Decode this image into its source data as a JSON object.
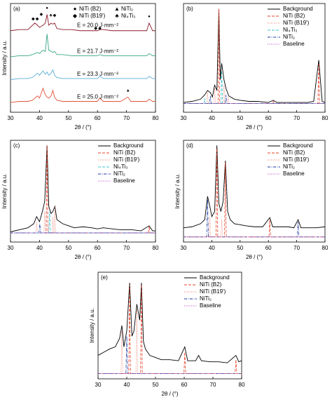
{
  "chart_data": [
    {
      "type": "line",
      "panel_label": "(a)",
      "xlabel": "2θ / (°)",
      "ylabel": "Intensity / a.u.",
      "legend": "inline",
      "xlim": [
        30,
        80
      ],
      "ylim": [
        0,
        100
      ],
      "xticks": [
        30,
        40,
        50,
        60,
        70,
        80
      ],
      "legend_symbols": [
        {
          "symbol": "●",
          "label": "NiTi (B2)"
        },
        {
          "symbol": "◆",
          "label": "NiTi (B19')"
        },
        {
          "symbol": "▲",
          "label": "NiTi₂"
        },
        {
          "symbol": "♣",
          "label": "Ni₄Ti₃"
        }
      ],
      "markers": [
        {
          "symbol": "◆",
          "x": 37.8,
          "y": 86
        },
        {
          "symbol": "◆",
          "x": 39.2,
          "y": 86
        },
        {
          "symbol": "◆",
          "x": 40.6,
          "y": 90
        },
        {
          "symbol": "●",
          "x": 42.6,
          "y": 96
        },
        {
          "symbol": "♣",
          "x": 43.9,
          "y": 89
        },
        {
          "symbol": "◆",
          "x": 45.2,
          "y": 89
        },
        {
          "symbol": "◆",
          "x": 59.4,
          "y": 77
        },
        {
          "symbol": "◆",
          "x": 60.8,
          "y": 77
        },
        {
          "symbol": "●",
          "x": 77.8,
          "y": 88
        },
        {
          "symbol": "▲",
          "x": 70.5,
          "y": 20
        }
      ],
      "x": [
        30,
        33,
        36,
        37.6,
        38.4,
        39.3,
        40,
        41.2,
        42,
        42.6,
        43.2,
        44,
        44.6,
        45.2,
        46,
        48,
        51,
        54,
        57,
        60,
        60.8,
        62,
        65,
        68,
        70.5,
        71.5,
        74,
        77,
        77.8,
        79,
        80
      ],
      "series": [
        {
          "name": "E = 20.0 J·mm⁻²",
          "color": "#8b1a2a",
          "style": "solid",
          "values": [
            75,
            76,
            76,
            80,
            82,
            80,
            78,
            80,
            82,
            90,
            80,
            82,
            81,
            82,
            77,
            76,
            76,
            75,
            75,
            75,
            76,
            76,
            75,
            75,
            75,
            75,
            75,
            75,
            82,
            75,
            75
          ]
        },
        {
          "name": "E = 21.7 J·mm⁻²",
          "color": "#3aa88a",
          "style": "solid",
          "values": [
            51,
            52,
            52,
            53,
            54,
            55,
            54,
            57,
            56,
            72,
            57,
            56,
            55,
            56,
            53,
            53,
            52,
            52,
            52,
            52,
            53,
            52,
            52,
            52,
            52,
            52,
            52,
            52,
            54,
            52,
            52
          ]
        },
        {
          "name": "E = 23.3 J·mm⁻²",
          "color": "#5aaed8",
          "style": "solid",
          "values": [
            30,
            31,
            31,
            32,
            34,
            36,
            34,
            38,
            35,
            37,
            34,
            36,
            39,
            34,
            32,
            31,
            31,
            31,
            31,
            31,
            33,
            31,
            31,
            31,
            31,
            31,
            31,
            31,
            33,
            31,
            31
          ]
        },
        {
          "name": "E = 25.0 J·mm⁻²",
          "color": "#e0553a",
          "style": "solid",
          "values": [
            9,
            10,
            10,
            11,
            13,
            15,
            13,
            22,
            16,
            14,
            13,
            15,
            20,
            14,
            11,
            10,
            10,
            10,
            10,
            10,
            13,
            10,
            10,
            10,
            14,
            10,
            10,
            10,
            12,
            10,
            10
          ]
        }
      ]
    },
    {
      "type": "line",
      "panel_label": "(b)",
      "xlabel": "2θ / (°)",
      "legend": "upper right",
      "xlim": [
        30,
        80
      ],
      "ylim": [
        0,
        100
      ],
      "xticks": [
        30,
        40,
        50,
        60,
        70,
        80
      ],
      "x": [
        30,
        33,
        36,
        37.5,
        38.5,
        39.5,
        40.2,
        41,
        41.8,
        42.5,
        43,
        43.5,
        44.3,
        45,
        46,
        48,
        50,
        53,
        56,
        60,
        61.7,
        63,
        66,
        70,
        74,
        76,
        77.8,
        79,
        80
      ],
      "series": [
        {
          "name": "Background",
          "color": "#000000",
          "style": "solid",
          "values": [
            9,
            10,
            12,
            16,
            20,
            18,
            14,
            25,
            20,
            95,
            30,
            45,
            30,
            22,
            15,
            12,
            11,
            10,
            10,
            9,
            11,
            9,
            9,
            9,
            9,
            10,
            48,
            10,
            9
          ]
        },
        {
          "name": "NiTi (B2)",
          "color": "#e8402a",
          "style": "dashed",
          "x": [
            30,
            42.2,
            42.5,
            42.8,
            61.4,
            61.7,
            62,
            77.5,
            77.8,
            78.1,
            80
          ],
          "values": [
            8,
            8,
            95,
            8,
            8,
            10,
            8,
            8,
            45,
            8,
            8
          ]
        },
        {
          "name": "NiTi (B19')",
          "color": "#f07a6a",
          "style": "dotted",
          "x": [
            30,
            38.2,
            38.5,
            38.8,
            40.7,
            41,
            41.3,
            44,
            44.3,
            44.6,
            45.5,
            45.8,
            46.1,
            80
          ],
          "values": [
            8,
            8,
            18,
            8,
            8,
            22,
            8,
            8,
            25,
            8,
            8,
            14,
            8,
            8
          ]
        },
        {
          "name": "Ni₄Ti₃",
          "color": "#3cc4d0",
          "style": "dashed",
          "x": [
            30,
            37.2,
            37.5,
            37.8,
            43.2,
            43.5,
            43.8,
            80
          ],
          "values": [
            8,
            8,
            13,
            8,
            8,
            38,
            8,
            8
          ]
        },
        {
          "name": "NiTi₂",
          "color": "#1a3aa0",
          "style": "dashdot",
          "x": [
            30,
            39.2,
            39.5,
            39.8,
            44.7,
            45,
            45.3,
            80
          ],
          "values": [
            8,
            8,
            15,
            8,
            8,
            16,
            8,
            8
          ]
        },
        {
          "name": "Baseline",
          "color": "#c040c0",
          "style": "dotted",
          "x": [
            30,
            80
          ],
          "values": [
            8,
            8
          ]
        }
      ]
    },
    {
      "type": "line",
      "panel_label": "(c)",
      "xlabel": "2θ / (°)",
      "ylabel": "Intensity / a.u.",
      "legend": "upper right",
      "xlim": [
        30,
        80
      ],
      "ylim": [
        0,
        100
      ],
      "xticks": [
        30,
        40,
        50,
        60,
        70,
        80
      ],
      "x": [
        30,
        33,
        36,
        38,
        39,
        40,
        41,
        41.8,
        42.6,
        43.2,
        44,
        44.6,
        45.3,
        46,
        48,
        50,
        52,
        55,
        58,
        60,
        62,
        65,
        68,
        70,
        72,
        75,
        77.8,
        79,
        80
      ],
      "series": [
        {
          "name": "Background",
          "color": "#000000",
          "style": "solid",
          "values": [
            10,
            12,
            14,
            18,
            25,
            20,
            30,
            40,
            95,
            35,
            28,
            30,
            35,
            22,
            18,
            16,
            14,
            15,
            14,
            13,
            14,
            13,
            12,
            12,
            12,
            11,
            16,
            11,
            11
          ]
        },
        {
          "name": "NiTi (B2)",
          "color": "#e8402a",
          "style": "dashed",
          "x": [
            30,
            42.3,
            42.6,
            42.9,
            77.5,
            77.8,
            78.1,
            80
          ],
          "values": [
            9,
            9,
            95,
            9,
            9,
            16,
            9,
            9
          ]
        },
        {
          "name": "NiTi (B19')",
          "color": "#f07a6a",
          "style": "dotted",
          "x": [
            30,
            38.7,
            39,
            39.3,
            41.5,
            41.8,
            42.1,
            44.3,
            44.6,
            44.9,
            45,
            45.3,
            45.6,
            80
          ],
          "values": [
            9,
            9,
            20,
            9,
            9,
            30,
            9,
            9,
            25,
            9,
            9,
            35,
            9,
            9
          ]
        },
        {
          "name": "Ni₄Ti₃",
          "color": "#3cc4d0",
          "style": "dashed",
          "x": [
            30,
            43.2,
            43.5,
            43.8,
            80
          ],
          "values": [
            9,
            9,
            30,
            9,
            9
          ]
        },
        {
          "name": "NiTi₂",
          "color": "#1a3aa0",
          "style": "dashdot",
          "x": [
            30,
            39.8,
            40.1,
            40.4,
            80
          ],
          "values": [
            9,
            9,
            18,
            9,
            9
          ]
        },
        {
          "name": "Baseline",
          "color": "#c040c0",
          "style": "dotted",
          "x": [
            30,
            80
          ],
          "values": [
            9,
            9
          ]
        }
      ]
    },
    {
      "type": "line",
      "panel_label": "(d)",
      "xlabel": "2θ / (°)",
      "ylabel": "Intensity / a.u.",
      "legend": "upper right",
      "xlim": [
        30,
        80
      ],
      "ylim": [
        0,
        100
      ],
      "xticks": [
        30,
        40,
        50,
        60,
        70,
        80
      ],
      "x": [
        30,
        33,
        36,
        37.5,
        38.5,
        39.3,
        40,
        41,
        41.8,
        42.5,
        43.2,
        44,
        44.8,
        45.6,
        46.5,
        48,
        50,
        52,
        55,
        58,
        60.5,
        61.5,
        64,
        67,
        69,
        70.5,
        71.5,
        74,
        77,
        80
      ],
      "series": [
        {
          "name": "Background",
          "color": "#000000",
          "style": "solid",
          "values": [
            14,
            15,
            18,
            22,
            45,
            35,
            25,
            30,
            95,
            38,
            30,
            40,
            80,
            30,
            22,
            18,
            17,
            16,
            15,
            15,
            24,
            15,
            15,
            15,
            14,
            22,
            14,
            14,
            14,
            15
          ]
        },
        {
          "name": "NiTi (B2)",
          "color": "#e8402a",
          "style": "dashed",
          "x": [
            30,
            41.5,
            41.8,
            42.1,
            44.5,
            44.8,
            45.1,
            60.2,
            60.5,
            60.8,
            80
          ],
          "values": [
            5,
            5,
            92,
            5,
            5,
            78,
            5,
            5,
            22,
            5,
            5
          ]
        },
        {
          "name": "NiTi (B19')",
          "color": "#f07a6a",
          "style": "dotted",
          "x": [
            30,
            39,
            39.3,
            39.6,
            43.2,
            43.5,
            43.8,
            80
          ],
          "values": [
            5,
            5,
            25,
            5,
            5,
            22,
            5,
            5
          ]
        },
        {
          "name": "NiTi₂",
          "color": "#1a3aa0",
          "style": "dashdot",
          "x": [
            30,
            38.2,
            38.5,
            38.8,
            70.2,
            70.5,
            70.8,
            80
          ],
          "values": [
            5,
            5,
            42,
            5,
            5,
            20,
            5,
            5
          ]
        },
        {
          "name": "Baseline",
          "color": "#c040c0",
          "style": "dotted",
          "x": [
            30,
            80
          ],
          "values": [
            5,
            5
          ]
        }
      ]
    },
    {
      "type": "line",
      "panel_label": "(e)",
      "xlabel": "2θ / (°)",
      "ylabel": "Intensity / a.u.",
      "legend": "upper right",
      "xlim": [
        30,
        80
      ],
      "ylim": [
        0,
        100
      ],
      "xticks": [
        30,
        40,
        50,
        60,
        70,
        80
      ],
      "x": [
        30,
        32,
        34,
        36,
        37.5,
        38.3,
        39,
        40,
        41,
        41.8,
        42.5,
        43.5,
        44.5,
        45.1,
        45.8,
        46.5,
        48,
        50,
        52,
        55,
        58,
        60.2,
        61.2,
        64,
        65,
        66,
        69,
        72,
        75,
        78,
        79,
        80
      ],
      "series": [
        {
          "name": "Background",
          "color": "#000000",
          "style": "solid",
          "values": [
            22,
            25,
            28,
            30,
            38,
            50,
            30,
            45,
            90,
            40,
            45,
            70,
            55,
            90,
            35,
            28,
            22,
            20,
            18,
            18,
            17,
            30,
            17,
            17,
            22,
            17,
            16,
            16,
            15,
            22,
            16,
            17
          ]
        },
        {
          "name": "NiTi (B2)",
          "color": "#e8402a",
          "style": "dashed",
          "x": [
            30,
            40.7,
            41,
            41.3,
            44.8,
            45.1,
            45.4,
            59.9,
            60.2,
            60.5,
            77.7,
            78,
            78.3,
            80
          ],
          "values": [
            5,
            5,
            88,
            5,
            5,
            88,
            5,
            5,
            25,
            5,
            5,
            18,
            5,
            5
          ]
        },
        {
          "name": "NiTi (B19')",
          "color": "#f07a6a",
          "style": "dotted",
          "x": [
            30,
            38,
            38.3,
            38.6,
            43.2,
            43.5,
            43.8,
            80
          ],
          "values": [
            5,
            5,
            45,
            5,
            5,
            65,
            5,
            5
          ]
        },
        {
          "name": "NiTi₂",
          "color": "#1a3aa0",
          "style": "dashdot",
          "x": [
            30,
            39.7,
            40,
            40.3,
            80
          ],
          "values": [
            5,
            5,
            40,
            5,
            5
          ]
        },
        {
          "name": "Baseline",
          "color": "#c040c0",
          "style": "dotted",
          "x": [
            30,
            80
          ],
          "values": [
            5,
            5
          ]
        }
      ]
    }
  ]
}
